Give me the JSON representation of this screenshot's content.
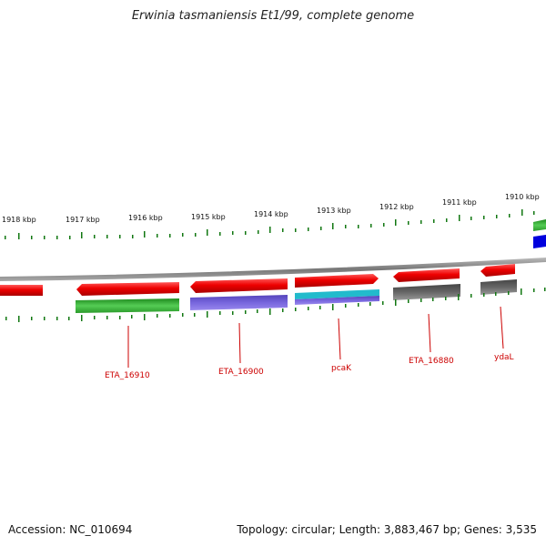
{
  "title": "Erwinia tasmaniensis Et1/99, complete genome",
  "ticks": [
    "1918 kbp",
    "1917 kbp",
    "1916 kbp",
    "1915 kbp",
    "1914 kbp",
    "1913 kbp",
    "1912 kbp",
    "1911 kbp",
    "1910 kbp"
  ],
  "gene_labels": [
    "ETA_16910",
    "ETA_16900",
    "pcaK",
    "ETA_16880",
    "ydaL"
  ],
  "footer": {
    "accession": "Accession: NC_010694",
    "info": "Topology: circular; Length: 3,883,467 bp; Genes: 3,535"
  },
  "colors": {
    "gene_red": "#ee0000",
    "cog_green": "#33aa33",
    "cog_purple": "#6655cc",
    "cog_cyan": "#22bbcc",
    "cog_gray": "#555555",
    "cog_blue": "#0000dd",
    "tick_green": "#117711",
    "backbone": "#888888",
    "label_red": "#cc0000"
  }
}
